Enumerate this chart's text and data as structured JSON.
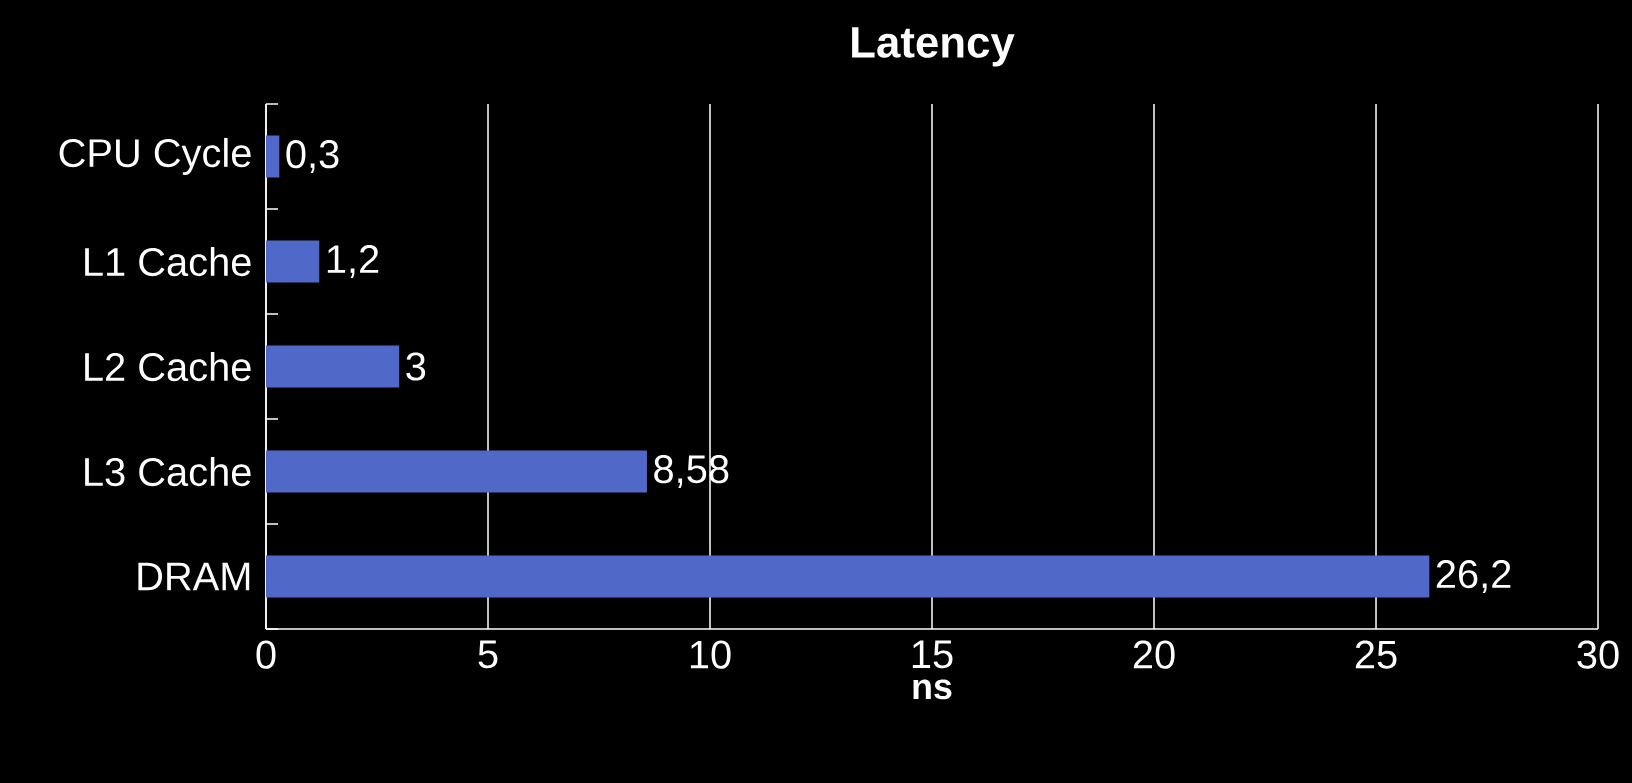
{
  "chart_data": {
    "type": "bar",
    "orientation": "horizontal",
    "title": "Latency",
    "xlabel": "ns",
    "categories": [
      "CPU Cycle",
      "L1 Cache",
      "L2 Cache",
      "L3 Cache",
      "DRAM"
    ],
    "values": [
      0.3,
      1.2,
      3,
      8.58,
      26.2
    ],
    "value_labels": [
      "0,3",
      "1,2",
      "3",
      "8,58",
      "26,2"
    ],
    "color": "#5068c8",
    "xlim": [
      0,
      30
    ],
    "xticks": [
      0,
      5,
      10,
      15,
      20,
      25,
      30
    ],
    "grid": "x"
  }
}
